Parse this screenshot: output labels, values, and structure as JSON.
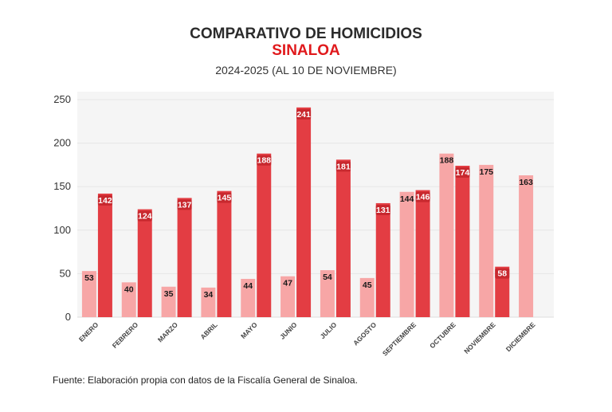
{
  "chart_data": {
    "type": "bar",
    "title": "COMPARATIVO DE HOMICIDIOS",
    "title_line2": "SINALOA",
    "subtitle": "2024-2025 (AL 10 DE NOVIEMBRE)",
    "source": "Fuente: Elaboración propia con datos de la Fiscalía General de Sinaloa.",
    "xlabel": "",
    "ylabel": "",
    "ylim": [
      0,
      250
    ],
    "yticks": [
      0,
      50,
      100,
      150,
      200,
      250
    ],
    "grid": true,
    "legend": "none",
    "categories": [
      "ENERO",
      "FEBRERO",
      "MARZO",
      "ABRIL",
      "MAYO",
      "JUNIO",
      "JULIO",
      "AGOSTO",
      "SEPTIEMBRE",
      "OCTUBRE",
      "NOVIEMBRE",
      "DICIEMBRE"
    ],
    "series": [
      {
        "values": [
          53,
          40,
          35,
          34,
          44,
          47,
          54,
          45,
          144,
          188,
          175,
          163
        ],
        "color": "#f7a6a6"
      },
      {
        "values": [
          142,
          124,
          137,
          145,
          188,
          241,
          181,
          131,
          146,
          174,
          58,
          null
        ],
        "color": "#e33d43"
      }
    ],
    "colors": {
      "title": "#2b2b2b",
      "title_accent": "#e0191c",
      "plot_bg": "#f5f5f5",
      "grid": "#e6e6e6"
    }
  }
}
